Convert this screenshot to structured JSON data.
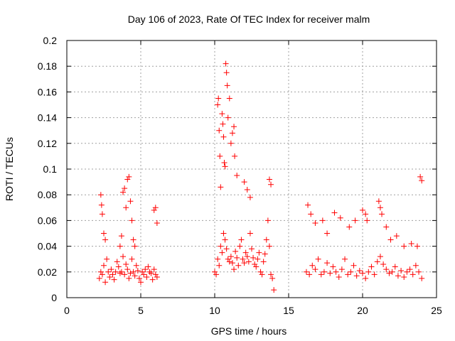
{
  "chart_data": {
    "type": "scatter",
    "title": "Day 106 of 2023, Rate Of TEC Index for receiver malm",
    "xlabel": "GPS time / hours",
    "ylabel": "ROTI / TECUs",
    "xlim": [
      0,
      25
    ],
    "ylim": [
      0,
      0.2
    ],
    "xticks": [
      "0",
      "5",
      "10",
      "15",
      "20",
      "25"
    ],
    "yticks": [
      "0",
      "0.02",
      "0.04",
      "0.06",
      "0.08",
      "0.1",
      "0.12",
      "0.14",
      "0.16",
      "0.18",
      "0.2"
    ],
    "grid": true,
    "marker": "+",
    "color": "#ff0000",
    "series": [
      {
        "x": [
          2.2,
          2.3,
          2.4,
          2.5,
          2.6,
          2.7,
          2.8,
          2.9,
          3.0,
          3.1,
          3.2,
          3.3,
          3.4,
          3.5,
          3.6,
          3.7,
          3.8,
          3.9,
          4.0,
          4.1,
          4.2,
          4.3,
          4.4,
          4.5,
          4.6,
          4.7,
          4.8,
          4.9,
          5.0,
          5.1,
          5.2,
          5.3,
          5.4,
          5.5,
          5.6,
          5.7,
          5.8,
          5.9,
          6.0,
          6.1,
          2.3,
          2.35,
          2.4,
          2.5,
          2.6,
          3.6,
          3.7,
          3.8,
          3.9,
          4.0,
          4.1,
          4.2,
          4.3,
          4.4,
          4.5,
          4.6,
          5.9,
          6.0,
          6.1,
          10.0,
          10.1,
          10.2,
          10.3,
          10.4,
          10.5,
          10.6,
          10.7,
          10.8,
          10.9,
          11.0,
          11.1,
          11.2,
          11.3,
          11.4,
          11.5,
          11.6,
          11.7,
          11.8,
          11.9,
          12.0,
          12.1,
          12.2,
          12.3,
          12.4,
          12.5,
          12.6,
          12.7,
          12.8,
          12.9,
          13.0,
          13.1,
          13.2,
          13.3,
          13.4,
          13.5,
          13.6,
          13.7,
          13.8,
          13.9,
          14.0,
          10.2,
          10.25,
          10.3,
          10.35,
          10.4,
          10.5,
          10.55,
          10.6,
          10.65,
          10.7,
          10.75,
          10.8,
          10.85,
          10.9,
          11.0,
          11.1,
          11.2,
          11.3,
          11.35,
          11.5,
          12.0,
          12.2,
          12.4,
          13.7,
          13.8,
          16.2,
          16.4,
          16.6,
          16.8,
          17.0,
          17.2,
          17.4,
          17.6,
          17.8,
          18.0,
          18.2,
          18.4,
          18.6,
          18.8,
          19.0,
          19.2,
          19.4,
          19.6,
          19.8,
          20.0,
          20.2,
          20.4,
          20.6,
          20.8,
          21.0,
          21.2,
          21.4,
          21.6,
          21.8,
          22.0,
          22.2,
          22.4,
          22.6,
          22.8,
          23.0,
          23.2,
          23.4,
          23.6,
          23.8,
          24.0,
          16.3,
          16.5,
          16.8,
          17.3,
          17.6,
          18.1,
          18.5,
          19.1,
          19.5,
          20.0,
          20.2,
          20.3,
          21.1,
          21.2,
          21.3,
          21.6,
          21.9,
          22.3,
          22.8,
          23.3,
          23.7,
          23.9,
          24.0
        ],
        "y": [
          0.015,
          0.02,
          0.018,
          0.025,
          0.012,
          0.03,
          0.02,
          0.016,
          0.022,
          0.018,
          0.014,
          0.02,
          0.028,
          0.024,
          0.019,
          0.02,
          0.032,
          0.018,
          0.026,
          0.022,
          0.015,
          0.019,
          0.03,
          0.02,
          0.017,
          0.025,
          0.021,
          0.015,
          0.012,
          0.02,
          0.018,
          0.022,
          0.016,
          0.024,
          0.02,
          0.019,
          0.014,
          0.022,
          0.018,
          0.016,
          0.08,
          0.072,
          0.065,
          0.05,
          0.045,
          0.04,
          0.048,
          0.082,
          0.085,
          0.07,
          0.092,
          0.094,
          0.075,
          0.06,
          0.045,
          0.04,
          0.068,
          0.07,
          0.058,
          0.02,
          0.018,
          0.03,
          0.025,
          0.04,
          0.035,
          0.05,
          0.045,
          0.038,
          0.03,
          0.028,
          0.032,
          0.027,
          0.022,
          0.036,
          0.031,
          0.025,
          0.04,
          0.045,
          0.03,
          0.027,
          0.035,
          0.032,
          0.028,
          0.05,
          0.038,
          0.031,
          0.026,
          0.024,
          0.03,
          0.035,
          0.02,
          0.018,
          0.028,
          0.034,
          0.045,
          0.06,
          0.04,
          0.018,
          0.015,
          0.006,
          0.15,
          0.155,
          0.13,
          0.11,
          0.086,
          0.143,
          0.135,
          0.125,
          0.105,
          0.102,
          0.182,
          0.175,
          0.165,
          0.14,
          0.155,
          0.12,
          0.128,
          0.133,
          0.11,
          0.095,
          0.09,
          0.084,
          0.078,
          0.092,
          0.088,
          0.02,
          0.018,
          0.025,
          0.022,
          0.03,
          0.018,
          0.02,
          0.027,
          0.019,
          0.024,
          0.02,
          0.016,
          0.022,
          0.03,
          0.018,
          0.02,
          0.025,
          0.017,
          0.021,
          0.019,
          0.015,
          0.02,
          0.024,
          0.018,
          0.028,
          0.032,
          0.026,
          0.022,
          0.019,
          0.02,
          0.024,
          0.017,
          0.021,
          0.016,
          0.02,
          0.022,
          0.018,
          0.025,
          0.02,
          0.015,
          0.072,
          0.065,
          0.058,
          0.06,
          0.05,
          0.066,
          0.062,
          0.055,
          0.06,
          0.068,
          0.065,
          0.06,
          0.075,
          0.07,
          0.065,
          0.055,
          0.045,
          0.048,
          0.04,
          0.042,
          0.04,
          0.094,
          0.091
        ]
      }
    ]
  }
}
